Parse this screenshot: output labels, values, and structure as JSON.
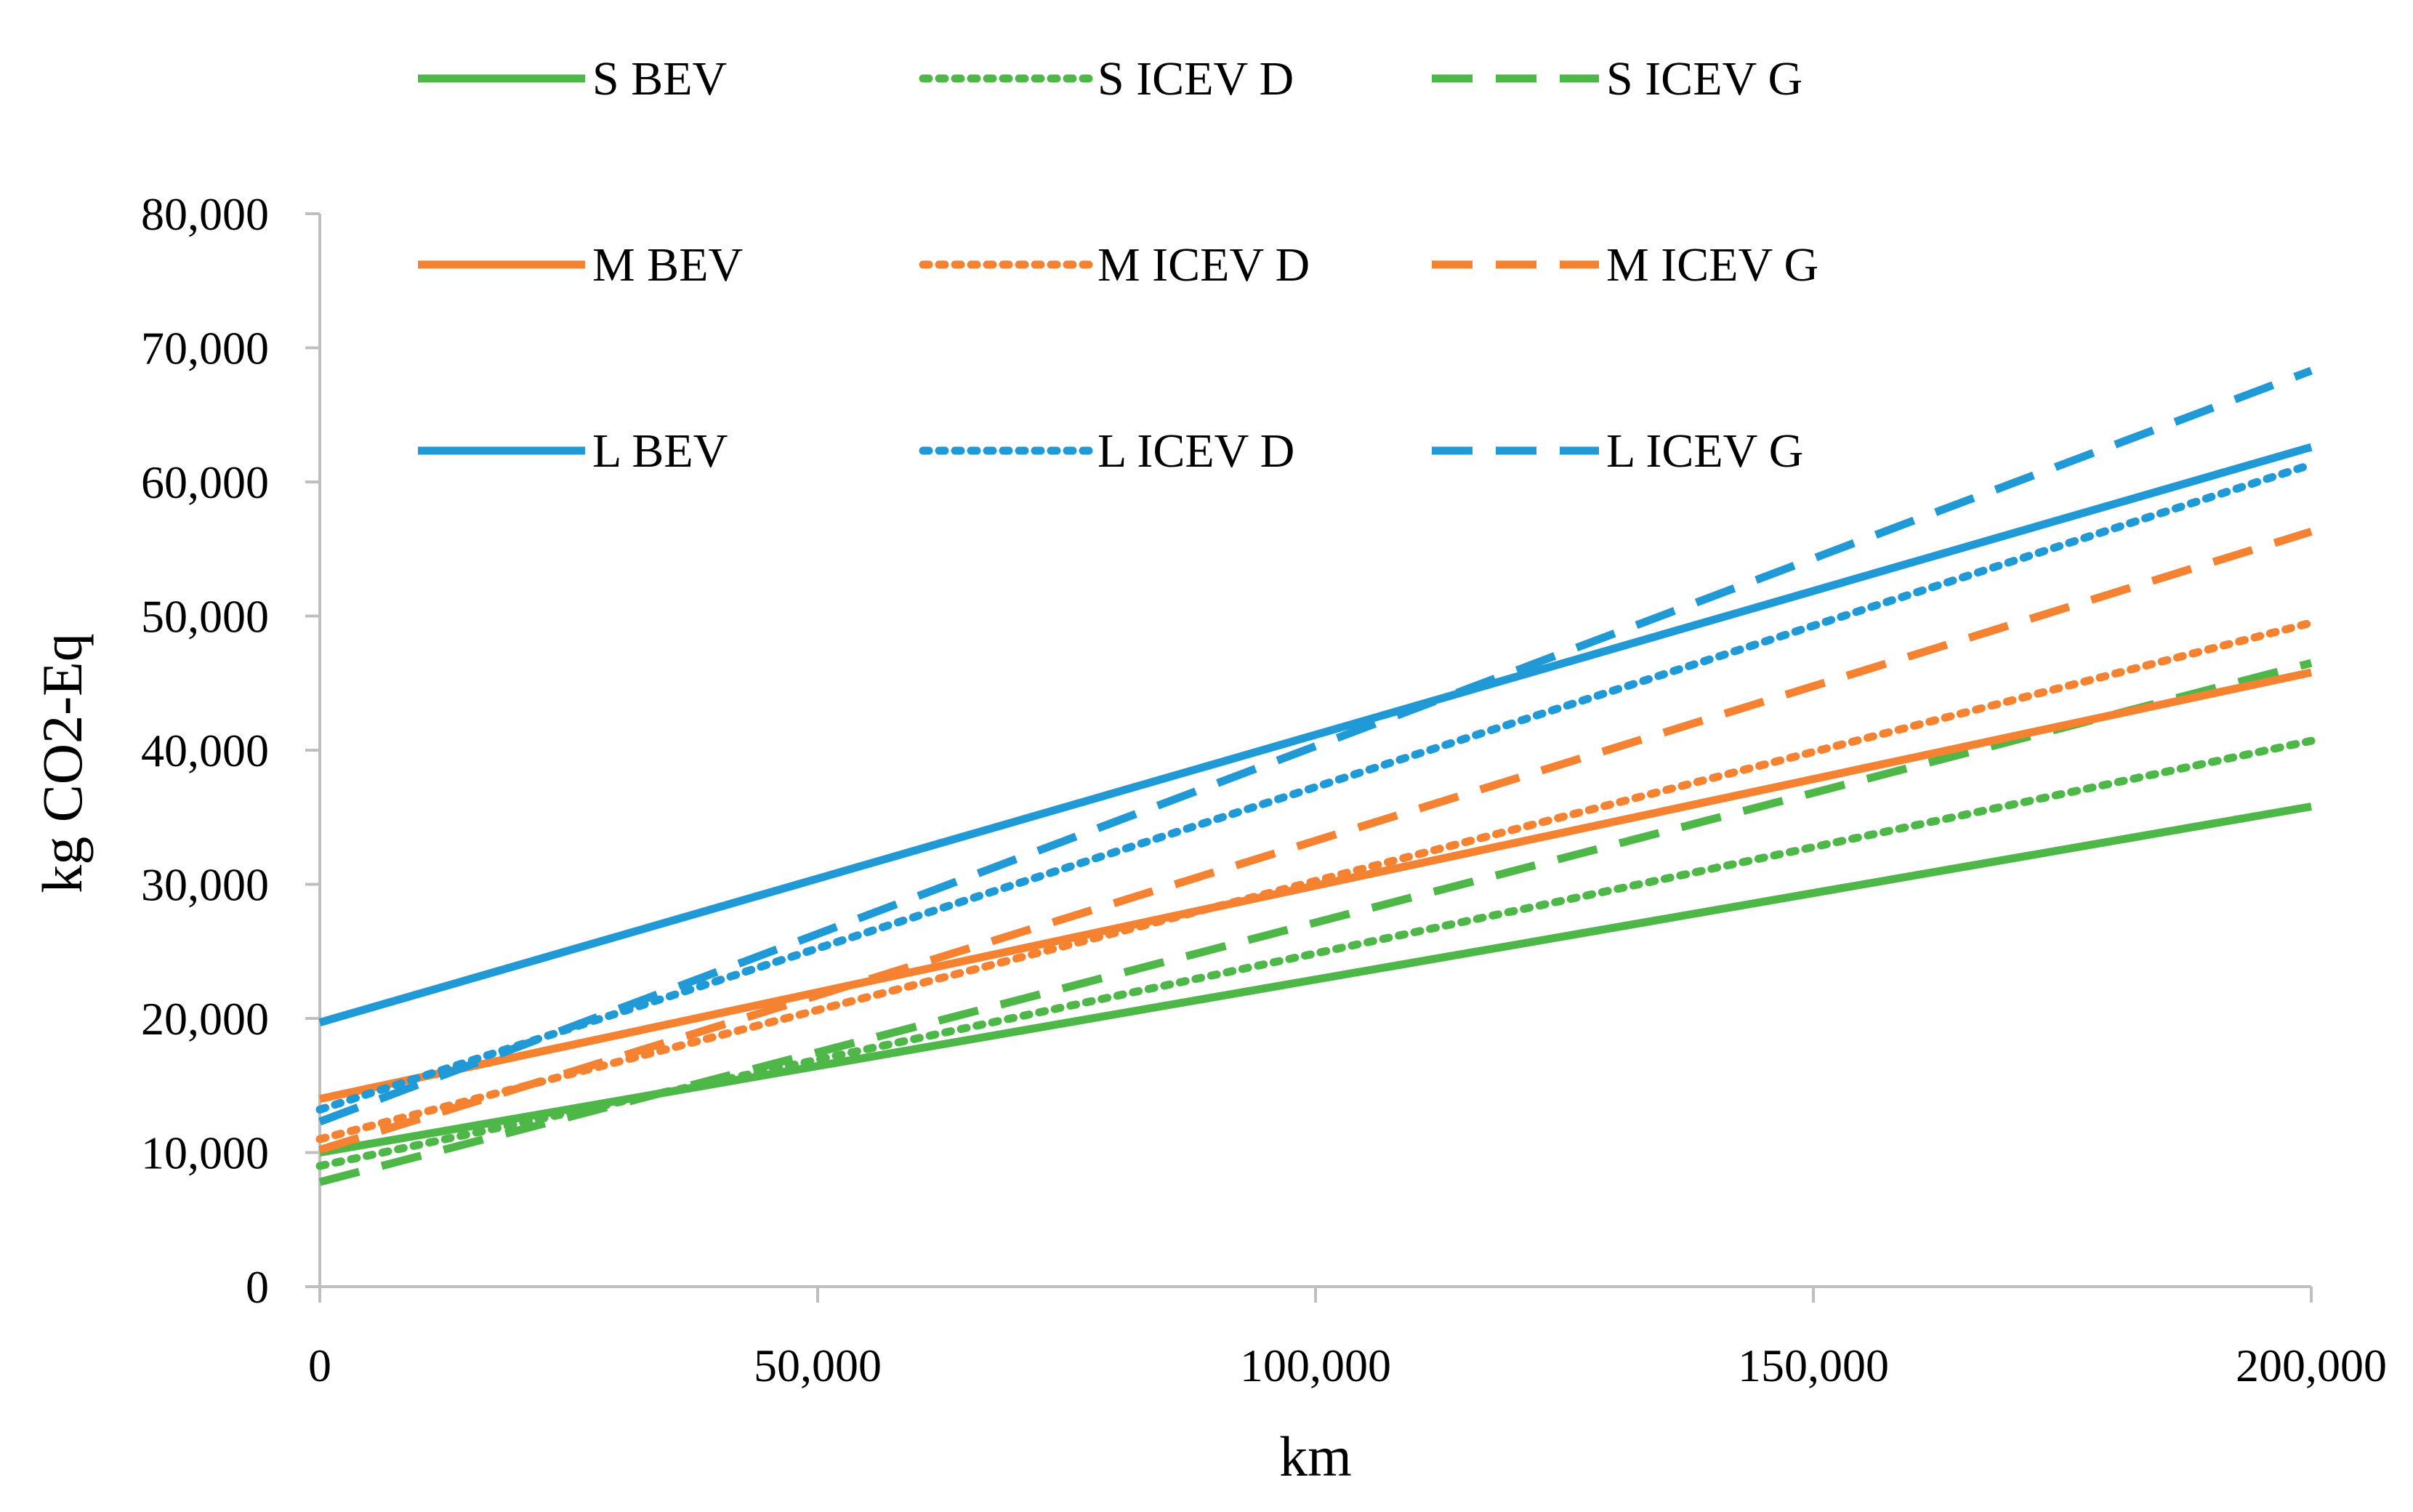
{
  "chart_data": {
    "type": "line",
    "title": "",
    "xlabel": "km",
    "ylabel": "kg CO2-Eq",
    "xlim": [
      0,
      200000
    ],
    "ylim": [
      0,
      80000
    ],
    "x_ticks": [
      0,
      50000,
      100000,
      150000,
      200000
    ],
    "x_tick_labels": [
      "0",
      "50,000",
      "100,000",
      "150,000",
      "200,000"
    ],
    "y_ticks": [
      0,
      10000,
      20000,
      30000,
      40000,
      50000,
      60000,
      70000,
      80000
    ],
    "y_tick_labels": [
      "0",
      "10,000",
      "20,000",
      "30,000",
      "40,000",
      "50,000",
      "60,000",
      "70,000",
      "80,000"
    ],
    "grid": false,
    "legend_position": "top-left inside plot",
    "x": [
      0,
      200000
    ],
    "series": [
      {
        "name": "S BEV",
        "values": [
          10000,
          35800
        ],
        "color": "#4DB748",
        "style": "solid"
      },
      {
        "name": "S ICEV D",
        "values": [
          9000,
          40700
        ],
        "color": "#4DB748",
        "style": "dotted"
      },
      {
        "name": "S ICEV G",
        "values": [
          7800,
          46500
        ],
        "color": "#4DB748",
        "style": "dashed"
      },
      {
        "name": "M BEV",
        "values": [
          14000,
          45800
        ],
        "color": "#F58231",
        "style": "solid"
      },
      {
        "name": "M ICEV D",
        "values": [
          11000,
          49500
        ],
        "color": "#F58231",
        "style": "dotted"
      },
      {
        "name": "M ICEV G",
        "values": [
          10200,
          56300
        ],
        "color": "#F58231",
        "style": "dashed"
      },
      {
        "name": "L BEV",
        "values": [
          19700,
          62600
        ],
        "color": "#1F9AD6",
        "style": "solid"
      },
      {
        "name": "L ICEV D",
        "values": [
          13200,
          61300
        ],
        "color": "#1F9AD6",
        "style": "dotted"
      },
      {
        "name": "L ICEV G",
        "values": [
          12300,
          68300
        ],
        "color": "#1F9AD6",
        "style": "dashed"
      }
    ]
  }
}
